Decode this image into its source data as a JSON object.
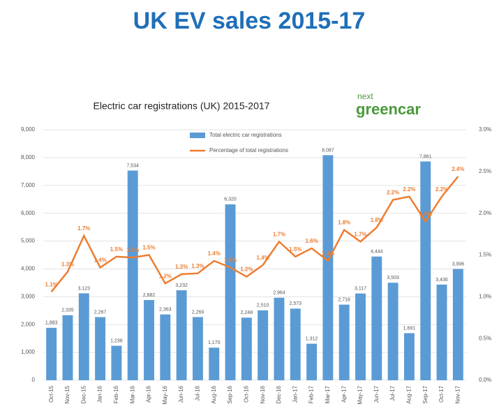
{
  "page_title": "UK EV sales 2015-17",
  "logo": {
    "top": "next",
    "bottom": "greencar"
  },
  "chart_data": {
    "type": "bar-line",
    "title": "Electric car registrations (UK) 2015-2017",
    "categories": [
      "Oct-15",
      "Nov-15",
      "Dec-15",
      "Jan-16",
      "Feb-16",
      "Mar-16",
      "Apr-16",
      "May-16",
      "Jun-16",
      "Jul-16",
      "Aug-16",
      "Sep-16",
      "Oct-16",
      "Nov-16",
      "Dec-16",
      "Jan-17",
      "Feb-17",
      "Mar-17",
      "Apr-17",
      "May-17",
      "Jun-17",
      "Jul-17",
      "Aug-17",
      "Sep-17",
      "Oct-17",
      "Nov-17"
    ],
    "series": [
      {
        "name": "Total electric car registrations",
        "type": "bar",
        "color": "#5b9bd5",
        "values": [
          1883,
          2335,
          3123,
          2267,
          1238,
          7534,
          2882,
          2363,
          3232,
          2269,
          1170,
          6320,
          2248,
          2510,
          2964,
          2573,
          1312,
          8087,
          2716,
          3117,
          4444,
          3503,
          1691,
          7861,
          3436,
          3996
        ],
        "value_labels": [
          "1,883",
          "2,335",
          "3,123",
          "2,267",
          "1,238",
          "7,534",
          "2,882",
          "2,363",
          "3,232",
          "2,269",
          "1,170",
          "6,320",
          "2,248",
          "2,510",
          "2,964",
          "2,573",
          "1,312",
          "8,087",
          "2,716",
          "3,117",
          "4,444",
          "3,503",
          "1,691",
          "7,861",
          "3,436",
          "3,996"
        ]
      },
      {
        "name": "Percentage of total registrations",
        "type": "line",
        "axis": "y2",
        "color": "#ed7d31",
        "values": [
          1.06,
          1.3,
          1.73,
          1.35,
          1.48,
          1.47,
          1.5,
          1.16,
          1.27,
          1.28,
          1.43,
          1.35,
          1.24,
          1.38,
          1.66,
          1.48,
          1.58,
          1.43,
          1.8,
          1.66,
          1.83,
          2.16,
          2.2,
          1.9,
          2.2,
          2.44
        ],
        "value_labels": [
          "1.1%",
          "1.3%",
          "1.7%",
          "1.4%",
          "1.5%",
          "1.5%",
          "1.5%",
          "1.2%",
          "1.3%",
          "1.3%",
          "1.4%",
          "1.3%",
          "1.2%",
          "1.4%",
          "1.7%",
          "1.5%",
          "1.6%",
          "1.4%",
          "1.8%",
          "1.7%",
          "1.8%",
          "2.2%",
          "2.2%",
          "1.9%",
          "2.2%",
          "2.4%"
        ]
      }
    ],
    "ylim": [
      0,
      9000
    ],
    "yticks": [
      0,
      {
        "value": 1000,
        "label": "1,000"
      },
      {
        "value": 2000,
        "label": "2,000"
      },
      {
        "value": 3000,
        "label": "3,000"
      },
      {
        "value": 4000,
        "label": "4,000"
      },
      {
        "value": 5000,
        "label": "5,000"
      },
      {
        "value": 6000,
        "label": "6,000"
      },
      {
        "value": 7000,
        "label": "7,000"
      },
      {
        "value": 8000,
        "label": "8,000"
      },
      {
        "value": 9000,
        "label": "9,000"
      }
    ],
    "y2lim": [
      0,
      3
    ],
    "y2ticks": [
      {
        "value": 0,
        "label": "0.0%"
      },
      {
        "value": 0.5,
        "label": "0.5%"
      },
      {
        "value": 1,
        "label": "1.0%"
      },
      {
        "value": 1.5,
        "label": "1.5%"
      },
      {
        "value": 2,
        "label": "2.0%"
      },
      {
        "value": 2.5,
        "label": "2.5%"
      },
      {
        "value": 3,
        "label": "3.0%"
      }
    ],
    "grid": true
  }
}
